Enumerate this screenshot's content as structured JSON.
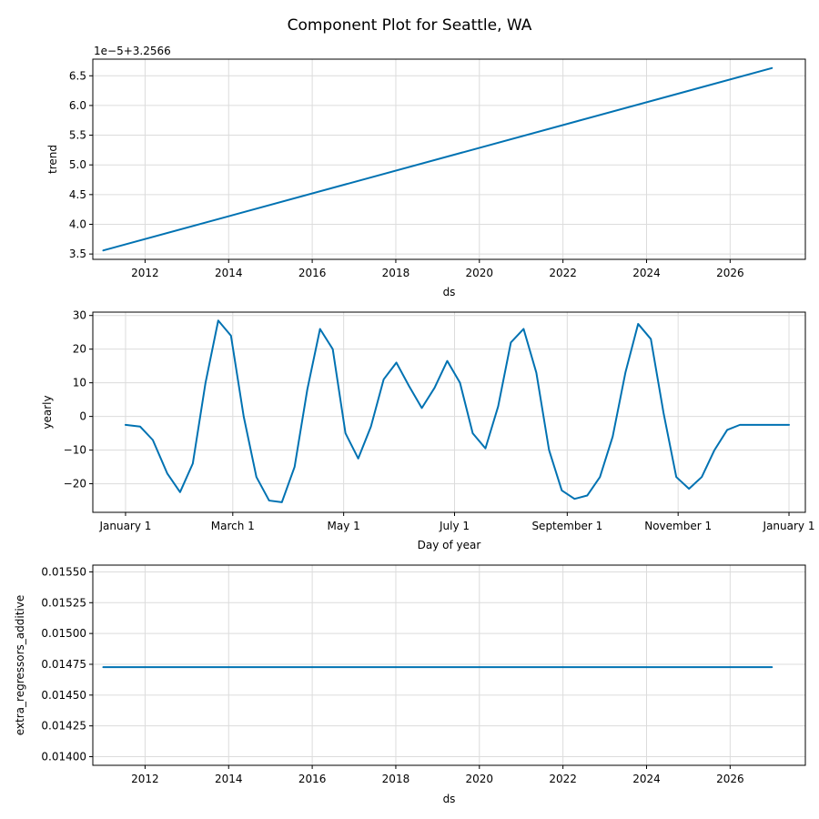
{
  "title": "Component Plot for Seattle, WA",
  "colors": {
    "line": "#0072B2",
    "grid": "#dcdcdc",
    "frame": "#000000"
  },
  "chart_data": [
    {
      "type": "line",
      "name": "trend",
      "xlabel": "ds",
      "ylabel": "trend",
      "offset_label": "1e−5+3.2566",
      "x": [
        2011.0,
        2027.0
      ],
      "y": [
        3.56,
        6.63
      ],
      "xlim": [
        2010.75,
        2027.8
      ],
      "ylim": [
        3.41,
        6.78
      ],
      "xticks": [
        2012,
        2014,
        2016,
        2018,
        2020,
        2022,
        2024,
        2026
      ],
      "xtick_labels": [
        "2012",
        "2014",
        "2016",
        "2018",
        "2020",
        "2022",
        "2024",
        "2026"
      ],
      "yticks": [
        3.5,
        4.0,
        4.5,
        5.0,
        5.5,
        6.0,
        6.5
      ],
      "ytick_labels": [
        "3.5",
        "4.0",
        "4.5",
        "5.0",
        "5.5",
        "6.0",
        "6.5"
      ],
      "grid": true
    },
    {
      "type": "line",
      "name": "yearly",
      "xlabel": "Day of year",
      "ylabel": "yearly",
      "x": [
        0,
        8,
        15,
        23,
        30,
        37,
        44,
        51,
        58,
        65,
        72,
        79,
        86,
        93,
        100,
        107,
        114,
        121,
        128,
        135,
        142,
        149,
        156,
        163,
        170,
        177,
        184,
        191,
        198,
        205,
        212,
        219,
        226,
        233,
        240,
        247,
        254,
        261,
        268,
        275,
        282,
        289,
        296,
        303,
        310,
        317,
        324,
        331,
        338,
        345,
        351,
        358,
        365
      ],
      "y": [
        -2.5,
        -3.0,
        -7.0,
        -17.0,
        -22.5,
        -14.0,
        10.0,
        28.5,
        24.0,
        0.0,
        -18.0,
        -25.0,
        -25.5,
        -15.0,
        8.0,
        26.0,
        20.0,
        -5.0,
        -12.5,
        -3.0,
        11.0,
        16.0,
        9.0,
        2.5,
        8.5,
        16.5,
        10.0,
        -5.0,
        -9.5,
        3.0,
        22.0,
        26.0,
        13.0,
        -10.0,
        -22.0,
        -24.5,
        -23.5,
        -18.0,
        -6.0,
        13.0,
        27.5,
        23.0,
        1.0,
        -18.0,
        -21.5,
        -18.0,
        -10.0,
        -4.0,
        -2.5,
        -2.5,
        -2.5,
        -2.5,
        -2.5
      ],
      "xlim": [
        -18,
        374
      ],
      "ylim": [
        -28.5,
        31
      ],
      "xticks": [
        0,
        59,
        120,
        181,
        243,
        304,
        365
      ],
      "xtick_labels": [
        "January 1",
        "March 1",
        "May 1",
        "July 1",
        "September 1",
        "November 1",
        "January 1"
      ],
      "yticks": [
        -20,
        -10,
        0,
        10,
        20,
        30
      ],
      "ytick_labels": [
        "−20",
        "−10",
        "0",
        "10",
        "20",
        "30"
      ],
      "grid": true
    },
    {
      "type": "line",
      "name": "extra_regressors_additive",
      "xlabel": "ds",
      "ylabel": "extra_regressors_additive",
      "x": [
        2011.0,
        2027.0
      ],
      "y": [
        0.014727,
        0.014727
      ],
      "xlim": [
        2010.75,
        2027.8
      ],
      "ylim": [
        0.01393,
        0.015555
      ],
      "xticks": [
        2012,
        2014,
        2016,
        2018,
        2020,
        2022,
        2024,
        2026
      ],
      "xtick_labels": [
        "2012",
        "2014",
        "2016",
        "2018",
        "2020",
        "2022",
        "2024",
        "2026"
      ],
      "yticks": [
        0.014,
        0.01425,
        0.0145,
        0.01475,
        0.015,
        0.01525,
        0.0155
      ],
      "ytick_labels": [
        "0.01400",
        "0.01425",
        "0.01450",
        "0.01475",
        "0.01500",
        "0.01525",
        "0.01550"
      ],
      "grid": true
    }
  ]
}
